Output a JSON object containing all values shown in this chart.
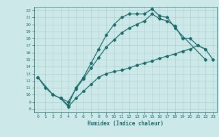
{
  "xlabel": "Humidex (Indice chaleur)",
  "bg_color": "#cde8e8",
  "line_color": "#1a6b6b",
  "xlim": [
    -0.5,
    23.5
  ],
  "ylim": [
    7.5,
    22.5
  ],
  "xticks": [
    0,
    1,
    2,
    3,
    4,
    5,
    6,
    7,
    8,
    9,
    10,
    11,
    12,
    13,
    14,
    15,
    16,
    17,
    18,
    19,
    20,
    21,
    22,
    23
  ],
  "yticks": [
    8,
    9,
    10,
    11,
    12,
    13,
    14,
    15,
    16,
    17,
    18,
    19,
    20,
    21,
    22
  ],
  "line1_x": [
    0,
    1,
    2,
    3,
    4,
    5,
    6,
    7,
    8,
    9,
    10,
    11,
    12,
    13,
    14,
    15,
    16,
    17,
    18,
    22
  ],
  "line1_y": [
    12.5,
    11.0,
    10.0,
    9.5,
    8.5,
    11.0,
    12.5,
    14.5,
    16.5,
    18.5,
    20.0,
    21.0,
    21.5,
    21.5,
    21.5,
    22.2,
    21.2,
    21.0,
    19.5,
    15.0
  ],
  "line2_x": [
    3,
    4,
    5,
    6,
    7,
    8,
    9,
    10,
    11,
    12,
    13,
    14,
    15,
    16,
    17,
    18,
    19,
    20,
    21,
    22
  ],
  "line2_y": [
    9.5,
    9.0,
    10.8,
    12.3,
    13.8,
    15.3,
    16.8,
    17.8,
    18.8,
    19.5,
    20.0,
    20.5,
    21.5,
    20.8,
    20.5,
    19.8,
    18.0,
    18.0,
    17.0,
    16.5
  ],
  "line3_x": [
    0,
    2,
    3,
    4,
    5,
    6,
    7,
    8,
    9,
    10,
    11,
    12,
    13,
    14,
    15,
    16,
    17,
    18,
    19,
    20,
    21,
    22,
    23
  ],
  "line3_y": [
    12.5,
    10.0,
    9.5,
    8.3,
    9.5,
    10.5,
    11.5,
    12.5,
    13.0,
    13.3,
    13.5,
    13.8,
    14.2,
    14.5,
    14.8,
    15.2,
    15.5,
    15.8,
    16.2,
    16.5,
    17.0,
    16.5,
    15.0
  ],
  "grid_color": "#aacccc",
  "marker": "D",
  "markersize": 2,
  "linewidth": 0.9
}
